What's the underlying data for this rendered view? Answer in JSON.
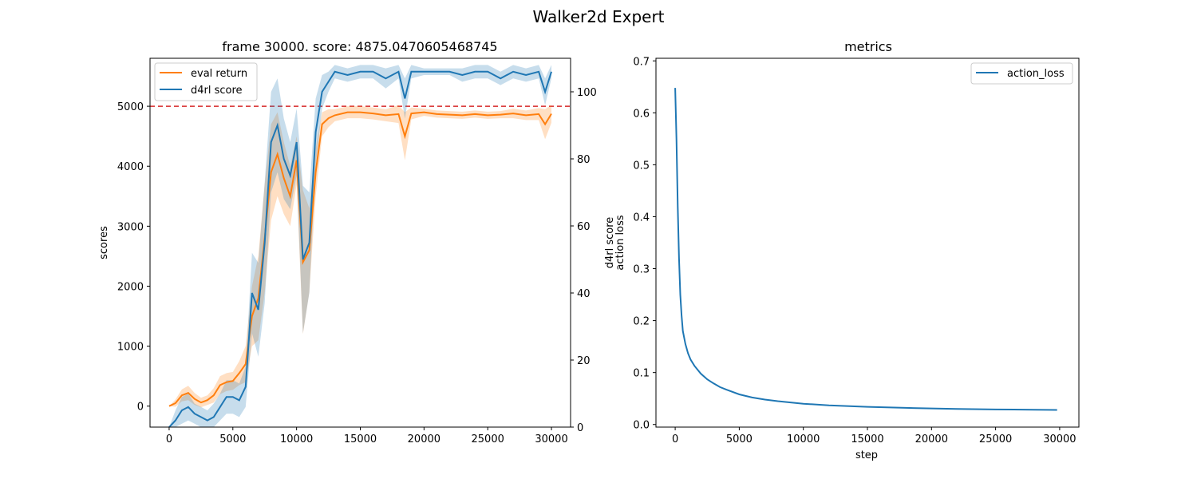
{
  "figure_title": "Walker2d Expert",
  "chart_data": [
    {
      "type": "line",
      "title": "frame 30000. score: 4875.0470605468745",
      "xlabel": "",
      "ylabel": "scores",
      "y2label": "",
      "xlim": [
        -1500,
        31500
      ],
      "ylim": [
        -350,
        5800
      ],
      "y2lim": [
        0,
        110
      ],
      "xticks": [
        0,
        5000,
        10000,
        15000,
        20000,
        25000,
        30000
      ],
      "yticks": [
        0,
        1000,
        2000,
        3000,
        4000,
        5000
      ],
      "y2ticks": [
        0,
        20,
        40,
        60,
        80,
        100
      ],
      "reference_line": {
        "y": 5000,
        "color": "#d62728",
        "style": "dashed"
      },
      "legend_position": "top-left",
      "series": [
        {
          "name": "eval return",
          "axis": "left",
          "color": "#ff7f0e",
          "x": [
            0,
            500,
            1000,
            1500,
            2000,
            2500,
            3000,
            3500,
            4000,
            4500,
            5000,
            5500,
            6000,
            6500,
            7000,
            7500,
            8000,
            8500,
            9000,
            9500,
            10000,
            10500,
            11000,
            11500,
            12000,
            12500,
            13000,
            14000,
            15000,
            16000,
            17000,
            18000,
            18500,
            19000,
            20000,
            21000,
            22000,
            23000,
            24000,
            25000,
            26000,
            27000,
            28000,
            29000,
            29500,
            30000
          ],
          "y": [
            0,
            50,
            180,
            220,
            120,
            60,
            100,
            180,
            350,
            400,
            420,
            550,
            700,
            1500,
            1800,
            2800,
            3900,
            4200,
            3800,
            3500,
            4100,
            2400,
            2600,
            3900,
            4700,
            4800,
            4850,
            4900,
            4900,
            4880,
            4850,
            4870,
            4500,
            4880,
            4900,
            4870,
            4860,
            4850,
            4870,
            4850,
            4860,
            4880,
            4850,
            4870,
            4700,
            4875
          ],
          "band": [
            0,
            60,
            100,
            120,
            100,
            80,
            80,
            120,
            150,
            150,
            150,
            200,
            300,
            500,
            700,
            900,
            800,
            700,
            600,
            500,
            400,
            1200,
            700,
            400,
            200,
            150,
            100,
            100,
            100,
            100,
            100,
            150,
            400,
            100,
            60,
            60,
            60,
            60,
            60,
            60,
            60,
            80,
            80,
            100,
            250,
            150
          ]
        },
        {
          "name": "d4rl score",
          "axis": "right",
          "color": "#1f77b4",
          "x": [
            0,
            500,
            1000,
            1500,
            2000,
            2500,
            3000,
            3500,
            4000,
            4500,
            5000,
            5500,
            6000,
            6500,
            7000,
            7500,
            8000,
            8500,
            9000,
            9500,
            10000,
            10500,
            11000,
            11500,
            12000,
            12500,
            13000,
            14000,
            15000,
            16000,
            17000,
            18000,
            18500,
            19000,
            20000,
            21000,
            22000,
            23000,
            24000,
            25000,
            26000,
            27000,
            28000,
            29000,
            29500,
            30000
          ],
          "y": [
            0,
            2,
            5,
            6,
            4,
            3,
            2,
            3,
            6,
            9,
            9,
            8,
            12,
            40,
            35,
            55,
            85,
            90,
            80,
            75,
            85,
            50,
            55,
            88,
            100,
            103,
            106,
            105,
            106,
            106,
            104,
            106,
            98,
            106,
            106,
            106,
            106,
            105,
            106,
            106,
            104,
            106,
            105,
            106,
            100,
            106
          ],
          "band": [
            0,
            3,
            4,
            4,
            3,
            3,
            3,
            4,
            4,
            5,
            5,
            5,
            6,
            12,
            14,
            18,
            15,
            14,
            12,
            10,
            10,
            22,
            15,
            10,
            5,
            3,
            2,
            2,
            2,
            2,
            3,
            2,
            6,
            2,
            1,
            1,
            1,
            2,
            2,
            2,
            2,
            2,
            2,
            2,
            4,
            2
          ]
        }
      ]
    },
    {
      "type": "line",
      "title": "metrics",
      "xlabel": "step",
      "ylabel_lines": [
        "d4rl score",
        "action loss"
      ],
      "xlim": [
        -1500,
        31500
      ],
      "ylim": [
        -0.005,
        0.705
      ],
      "xticks": [
        0,
        5000,
        10000,
        15000,
        20000,
        25000,
        30000
      ],
      "yticks": [
        0.0,
        0.1,
        0.2,
        0.3,
        0.4,
        0.5,
        0.6,
        0.7
      ],
      "legend_position": "top-right",
      "series": [
        {
          "name": "action_loss",
          "color": "#1f77b4",
          "x": [
            0,
            100,
            200,
            300,
            400,
            500,
            600,
            800,
            1000,
            1200,
            1500,
            2000,
            2500,
            3000,
            3500,
            4000,
            5000,
            6000,
            7000,
            8000,
            10000,
            12000,
            15000,
            18000,
            20000,
            22000,
            25000,
            28000,
            29800
          ],
          "y": [
            0.648,
            0.55,
            0.42,
            0.32,
            0.25,
            0.21,
            0.18,
            0.155,
            0.137,
            0.125,
            0.113,
            0.098,
            0.087,
            0.079,
            0.072,
            0.067,
            0.058,
            0.052,
            0.048,
            0.045,
            0.04,
            0.037,
            0.034,
            0.032,
            0.031,
            0.03,
            0.029,
            0.0285,
            0.028
          ]
        }
      ]
    }
  ]
}
